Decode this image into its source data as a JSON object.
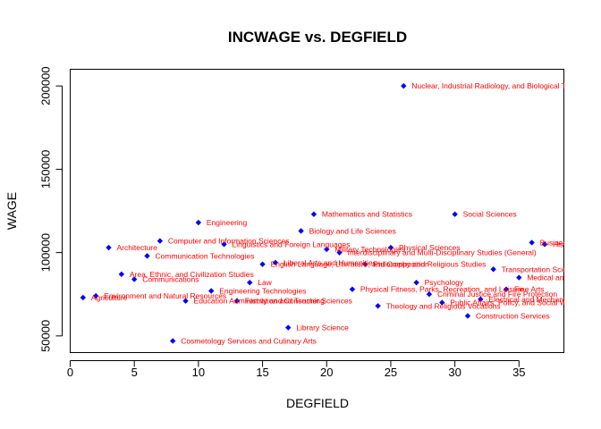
{
  "chart_data": {
    "type": "scatter",
    "title": "INCWAGE vs. DEGFIELD",
    "xlabel": "DEGFIELD",
    "ylabel": "WAGE",
    "xlim": [
      0,
      38.5
    ],
    "ylim": [
      40000,
      210000
    ],
    "xticks": [
      0,
      5,
      10,
      15,
      20,
      25,
      30,
      35
    ],
    "yticks": [
      50000,
      100000,
      150000,
      200000
    ],
    "grid": false,
    "legend": "none",
    "point_color": "#0000ff",
    "label_color": "#ff0000",
    "points": [
      {
        "x": 1,
        "y": 73000,
        "label": "Agriculture"
      },
      {
        "x": 2,
        "y": 74000,
        "label": "Environment and Natural Resources"
      },
      {
        "x": 3,
        "y": 103000,
        "label": "Architecture"
      },
      {
        "x": 4,
        "y": 87000,
        "label": "Area, Ethnic, and Civilization Studies"
      },
      {
        "x": 5,
        "y": 84000,
        "label": "Communications"
      },
      {
        "x": 6,
        "y": 98000,
        "label": "Communication Technologies"
      },
      {
        "x": 7,
        "y": 107000,
        "label": "Computer and Information Sciences"
      },
      {
        "x": 8,
        "y": 47000,
        "label": "Cosmetology Services and Culinary Arts"
      },
      {
        "x": 9,
        "y": 71000,
        "label": "Education Administration and Teaching"
      },
      {
        "x": 10,
        "y": 118000,
        "label": "Engineering"
      },
      {
        "x": 11,
        "y": 77000,
        "label": "Engineering Technologies"
      },
      {
        "x": 12,
        "y": 105000,
        "label": "Linguistics and Foreign Languages"
      },
      {
        "x": 13,
        "y": 71000,
        "label": "Family and Consumer Sciences"
      },
      {
        "x": 14,
        "y": 82000,
        "label": "Law"
      },
      {
        "x": 15,
        "y": 93000,
        "label": "English Language, Literature, and Composition"
      },
      {
        "x": 16,
        "y": 94000,
        "label": "Liberal Arts and Humanities"
      },
      {
        "x": 17,
        "y": 55000,
        "label": "Library Science"
      },
      {
        "x": 18,
        "y": 113000,
        "label": "Biology and Life Sciences"
      },
      {
        "x": 19,
        "y": 123000,
        "label": "Mathematics and Statistics"
      },
      {
        "x": 20,
        "y": 102000,
        "label": "Military Technologies"
      },
      {
        "x": 21,
        "y": 100000,
        "label": "Interdisciplinary and Multi-Disciplinary Studies (General)"
      },
      {
        "x": 22,
        "y": 78000,
        "label": "Physical Fitness, Parks, Recreation, and Leisure"
      },
      {
        "x": 23,
        "y": 93000,
        "label": "Philosophy and Religious Studies"
      },
      {
        "x": 24,
        "y": 68000,
        "label": "Theology and Religious Vocations"
      },
      {
        "x": 25,
        "y": 103000,
        "label": "Physical Sciences"
      },
      {
        "x": 26,
        "y": 200000,
        "label": "Nuclear, Industrial Radiology, and Biological Technologies"
      },
      {
        "x": 27,
        "y": 82000,
        "label": "Psychology"
      },
      {
        "x": 28,
        "y": 75000,
        "label": "Criminal Justice and Fire Protection"
      },
      {
        "x": 29,
        "y": 70000,
        "label": "Public Affairs, Policy, and Social Work"
      },
      {
        "x": 30,
        "y": 123000,
        "label": "Social Sciences"
      },
      {
        "x": 31,
        "y": 62000,
        "label": "Construction Services"
      },
      {
        "x": 32,
        "y": 72000,
        "label": "Electrical and Mechanic Repairs and Technologies"
      },
      {
        "x": 33,
        "y": 90000,
        "label": "Transportation Sciences and Technologies"
      },
      {
        "x": 34,
        "y": 78000,
        "label": "Fine Arts"
      },
      {
        "x": 35,
        "y": 85000,
        "label": "Medical and Health Sciences and Services"
      },
      {
        "x": 36,
        "y": 106000,
        "label": "Business"
      },
      {
        "x": 37,
        "y": 105000,
        "label": "History"
      }
    ]
  }
}
